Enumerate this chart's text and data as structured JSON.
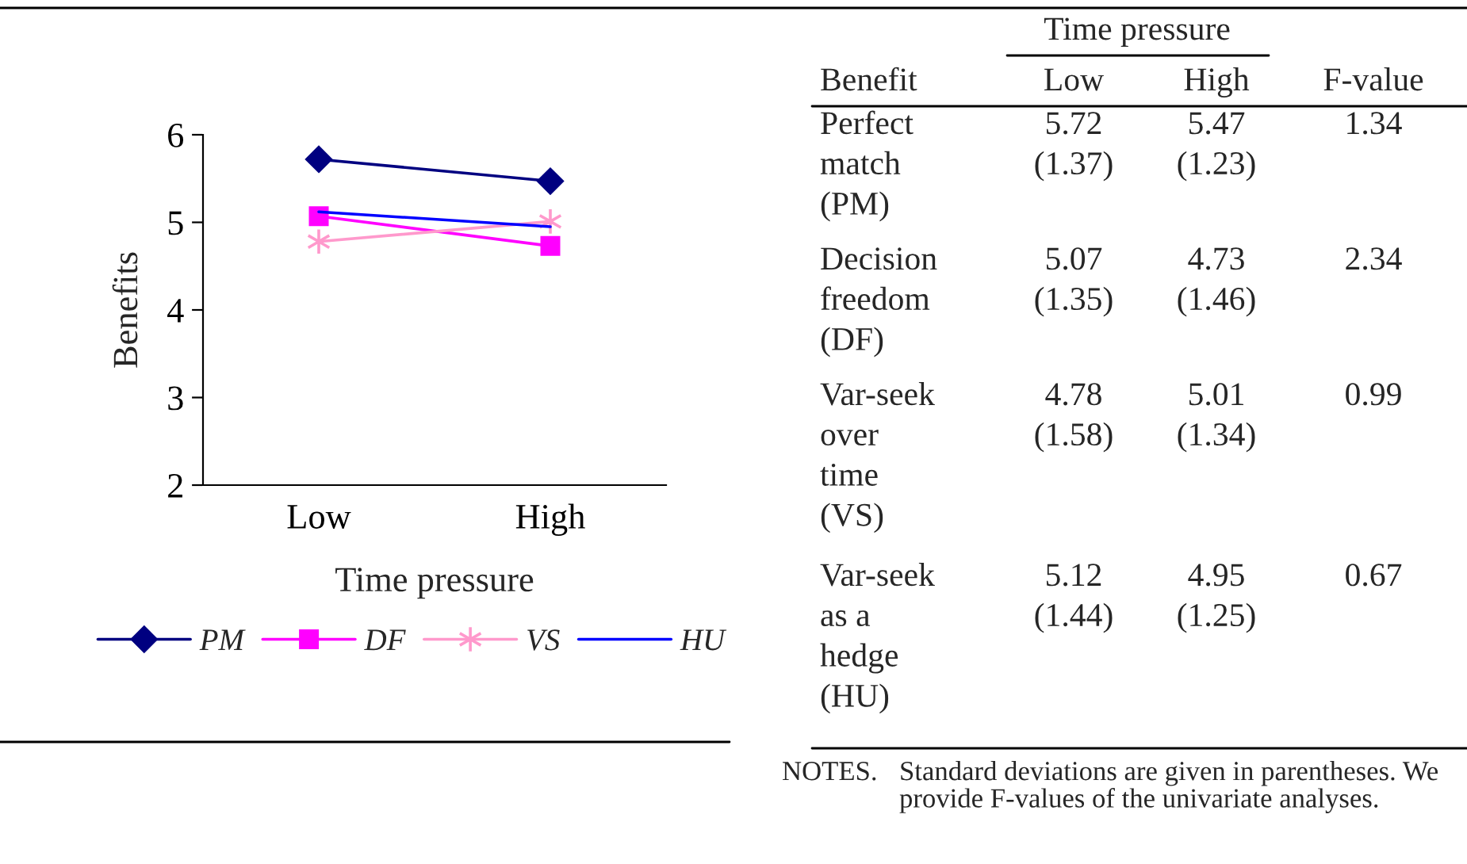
{
  "chart_data": [
    {
      "type": "line",
      "xlabel": "Time pressure",
      "ylabel": "Benefits",
      "categories": [
        "Low",
        "High"
      ],
      "ylim": [
        2,
        6
      ],
      "yticks": [
        2,
        3,
        4,
        5,
        6
      ],
      "grid": false,
      "legend": "bottom",
      "series": [
        {
          "name": "PM",
          "color": "#000080",
          "marker": "diamond",
          "values": [
            5.72,
            5.47
          ]
        },
        {
          "name": "DF",
          "color": "#ff00ff",
          "marker": "square",
          "values": [
            5.07,
            4.73
          ]
        },
        {
          "name": "VS",
          "color": "#ff99cc",
          "marker": "cross",
          "values": [
            4.78,
            5.01
          ]
        },
        {
          "name": "HU",
          "color": "#0000ff",
          "marker": "none",
          "values": [
            5.12,
            4.95
          ]
        }
      ]
    },
    {
      "type": "other",
      "annotations": [
        "Time pressure",
        "Benefit",
        "Low",
        "High",
        "F-value",
        "Perfect\nmatch\n(PM)",
        "5.72\n(1.37)",
        "5.47\n(1.23)",
        "1.34",
        "Decision\nfreedom\n(DF)",
        "5.07\n(1.35)",
        "4.73\n(1.46)",
        "2.34",
        "Var-seek\nover\ntime\n(VS)",
        "4.78\n(1.58)",
        "5.01\n(1.34)",
        "0.99",
        "Var-seek\nas a\nhedge\n(HU)",
        "5.12\n(1.44)",
        "4.95\n(1.25)",
        "0.67",
        "NOTES.",
        "Standard deviations are given in parentheses. We provide F-values of the univariate analyses."
      ]
    }
  ]
}
